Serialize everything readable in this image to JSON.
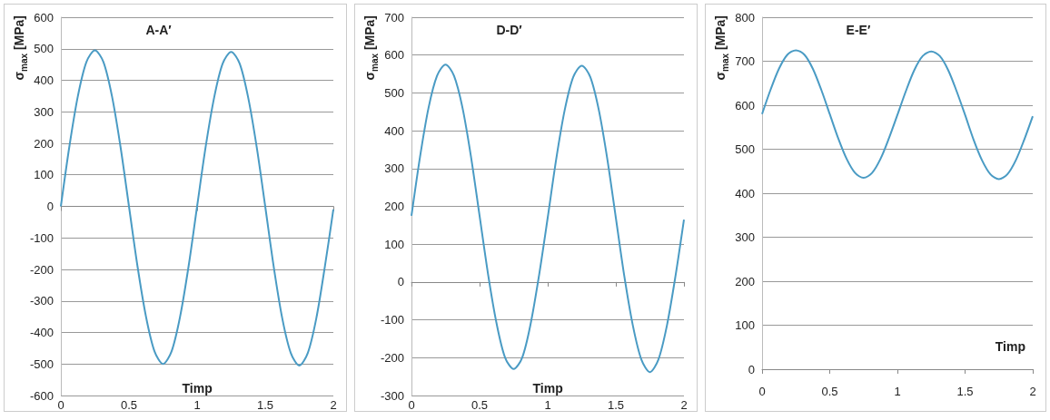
{
  "chart_data": [
    {
      "type": "line",
      "title": "A-A′",
      "xlabel": "Timp",
      "ylabel": "σ$_{max}$ [MPa]",
      "color": "#4a9bc4",
      "grid": "y",
      "x": [
        0,
        0.0625,
        0.125,
        0.1875,
        0.25,
        0.3125,
        0.375,
        0.4375,
        0.5,
        0.5625,
        0.625,
        0.6875,
        0.75,
        0.8125,
        0.875,
        0.9375,
        1,
        1.0625,
        1.125,
        1.1875,
        1.25,
        1.3125,
        1.375,
        1.4375,
        1.5,
        1.5625,
        1.625,
        1.6875,
        1.75,
        1.8125,
        1.875,
        1.9375,
        2
      ],
      "values": [
        0,
        190,
        350,
        458,
        495,
        458,
        350,
        190,
        0,
        -190,
        -350,
        -460,
        -500,
        -460,
        -350,
        -190,
        0,
        188,
        345,
        453,
        490,
        453,
        345,
        188,
        0,
        -192,
        -355,
        -465,
        -505,
        -465,
        -355,
        -192,
        -10
      ],
      "xlim": [
        0,
        2
      ],
      "xticks": [
        0,
        0.5,
        1,
        1.5,
        2
      ],
      "ylim": [
        -600,
        600
      ],
      "yticks": [
        -600,
        -500,
        -400,
        -300,
        -200,
        -100,
        0,
        100,
        200,
        300,
        400,
        500,
        600
      ]
    },
    {
      "type": "line",
      "title": "D-D′",
      "xlabel": "Timp",
      "ylabel": "σ$_{max}$ [MPa]",
      "color": "#4a9bc4",
      "grid": "y",
      "x": [
        0,
        0.0625,
        0.125,
        0.1875,
        0.25,
        0.3125,
        0.375,
        0.4375,
        0.5,
        0.5625,
        0.625,
        0.6875,
        0.75,
        0.8125,
        0.875,
        0.9375,
        1,
        1.0625,
        1.125,
        1.1875,
        1.25,
        1.3125,
        1.375,
        1.4375,
        1.5,
        1.5625,
        1.625,
        1.6875,
        1.75,
        1.8125,
        1.875,
        1.9375,
        2
      ],
      "values": [
        175,
        330,
        460,
        545,
        575,
        545,
        460,
        330,
        175,
        20,
        -110,
        -200,
        -230,
        -200,
        -110,
        20,
        170,
        325,
        455,
        542,
        572,
        542,
        455,
        325,
        170,
        15,
        -115,
        -205,
        -238,
        -205,
        -115,
        15,
        165
      ],
      "xlim": [
        0,
        2
      ],
      "xticks": [
        0,
        0.5,
        1,
        1.5,
        2
      ],
      "ylim": [
        -300,
        700
      ],
      "yticks": [
        -300,
        -200,
        -100,
        0,
        100,
        200,
        300,
        400,
        500,
        600,
        700
      ]
    },
    {
      "type": "line",
      "title": "E-E′",
      "xlabel": "Timp",
      "ylabel": "σ$_{max}$ [MPa]",
      "color": "#4a9bc4",
      "grid": "y",
      "x": [
        0,
        0.0625,
        0.125,
        0.1875,
        0.25,
        0.3125,
        0.375,
        0.4375,
        0.5,
        0.5625,
        0.625,
        0.6875,
        0.75,
        0.8125,
        0.875,
        0.9375,
        1,
        1.0625,
        1.125,
        1.1875,
        1.25,
        1.3125,
        1.375,
        1.4375,
        1.5,
        1.5625,
        1.625,
        1.6875,
        1.75,
        1.8125,
        1.875,
        1.9375,
        2
      ],
      "values": [
        580,
        635,
        683,
        715,
        725,
        715,
        683,
        635,
        580,
        525,
        478,
        446,
        435,
        446,
        478,
        525,
        578,
        632,
        680,
        712,
        722,
        712,
        680,
        632,
        578,
        522,
        475,
        443,
        432,
        443,
        475,
        522,
        575
      ],
      "xlim": [
        0,
        2
      ],
      "xticks": [
        0,
        0.5,
        1,
        1.5,
        2
      ],
      "ylim": [
        0,
        800
      ],
      "yticks": [
        0,
        100,
        200,
        300,
        400,
        500,
        600,
        700,
        800
      ]
    }
  ]
}
